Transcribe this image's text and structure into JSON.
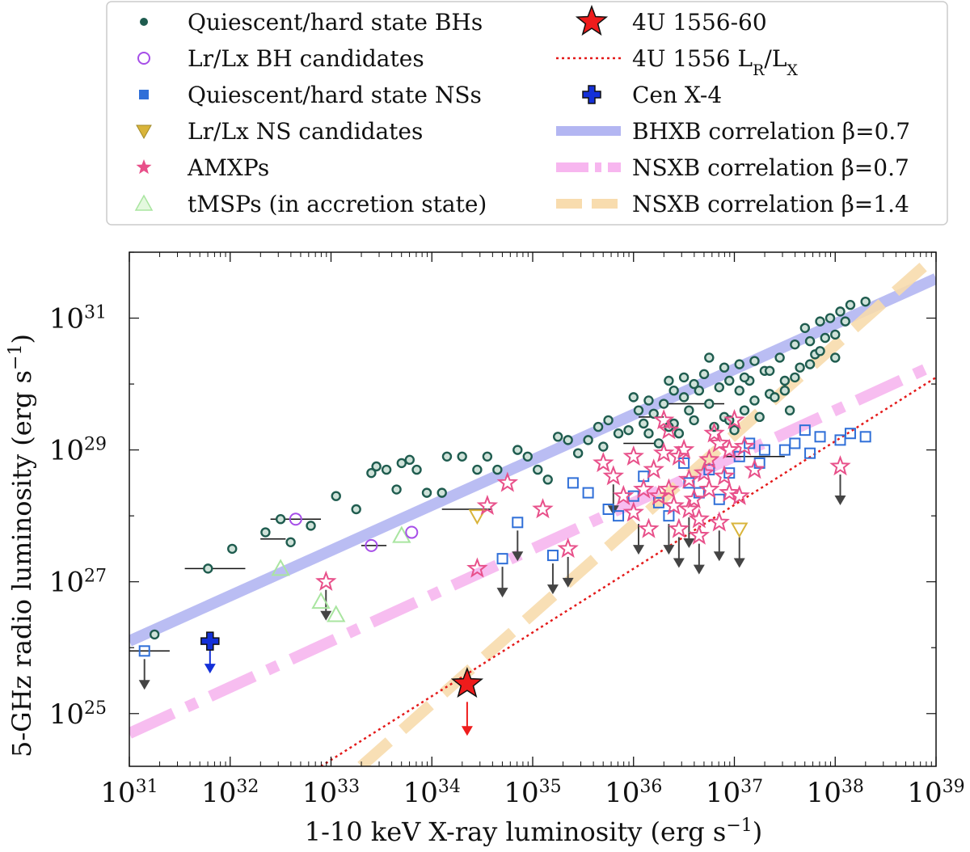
{
  "chart_data": {
    "type": "scatter",
    "xlabel": "1-10 keV X-ray luminosity (erg s",
    "xlabel_sup": "−1",
    "xlabel_end": ")",
    "ylabel": "5-GHz radio luminosity (erg s",
    "ylabel_sup": "−1",
    "ylabel_end": ")",
    "x_scale": "log",
    "y_scale": "log",
    "xlim_log10": [
      31,
      39
    ],
    "ylim_log10": [
      24.2,
      32.0
    ],
    "x_ticks": [
      {
        "exp": 31,
        "base": "10",
        "sup": "31"
      },
      {
        "exp": 32,
        "base": "10",
        "sup": "32"
      },
      {
        "exp": 33,
        "base": "10",
        "sup": "33"
      },
      {
        "exp": 34,
        "base": "10",
        "sup": "34"
      },
      {
        "exp": 35,
        "base": "10",
        "sup": "35"
      },
      {
        "exp": 36,
        "base": "10",
        "sup": "36"
      },
      {
        "exp": 37,
        "base": "10",
        "sup": "37"
      },
      {
        "exp": 38,
        "base": "10",
        "sup": "38"
      },
      {
        "exp": 39,
        "base": "10",
        "sup": "39"
      }
    ],
    "y_ticks": [
      {
        "exp": 25,
        "base": "10",
        "sup": "25"
      },
      {
        "exp": 27,
        "base": "10",
        "sup": "27"
      },
      {
        "exp": 29,
        "base": "10",
        "sup": "29"
      },
      {
        "exp": 31,
        "base": "10",
        "sup": "31"
      }
    ],
    "colors": {
      "bh": "#1f5c4f",
      "bh_cand": "#a64ee8",
      "ns": "#2f6fd8",
      "ns_cand": "#d9b43a",
      "amxp": "#e8508a",
      "tmsp": "#a9e5a0",
      "target": "#ee1c1c",
      "cenx4": "#1430d8",
      "bh_corr": "#b3b6f2",
      "ns_corr07": "#f7b6ef",
      "ns_corr14": "#f8dcae",
      "lrlx": "#e41a1a",
      "arrow": "#444444"
    },
    "legend": {
      "placement": "top",
      "entries": [
        {
          "label": "Quiescent/hard state BHs",
          "marker": "dot"
        },
        {
          "label": "Lr/Lx BH candidates",
          "marker": "circle-purple"
        },
        {
          "label": "Quiescent/hard state NSs",
          "marker": "square-blue"
        },
        {
          "label": "Lr/Lx NS candidates",
          "marker": "triangle-down-yellow"
        },
        {
          "label": "AMXPs",
          "marker": "star-pink"
        },
        {
          "label": "tMSPs (in accretion state)",
          "marker": "triangle-up-green"
        },
        {
          "label": "4U 1556-60",
          "marker": "star-red"
        },
        {
          "label": "4U 1556 L",
          "sub1": "R",
          "mid": "/L",
          "sub2": "X",
          "marker": "dotted-red"
        },
        {
          "label": "Cen X-4",
          "marker": "plus-blue"
        },
        {
          "label": "BHXB correlation β=0.7",
          "marker": "band-blue"
        },
        {
          "label": "NSXB correlation β=0.7",
          "marker": "band-pink"
        },
        {
          "label": "NSXB correlation β=1.4",
          "marker": "band-orange"
        }
      ]
    },
    "lines": [
      {
        "name": "BHXB correlation β=0.7",
        "x": [
          31.0,
          39.0
        ],
        "y": [
          26.1,
          31.6
        ],
        "style": "solid"
      },
      {
        "name": "NSXB correlation β=0.7",
        "x": [
          31.0,
          39.0
        ],
        "y": [
          24.7,
          30.3
        ],
        "style": "dashdot"
      },
      {
        "name": "NSXB correlation β=1.4",
        "x": [
          33.3,
          39.0
        ],
        "y": [
          24.2,
          31.95
        ],
        "style": "dashed"
      },
      {
        "name": "4U 1556 LR/LX",
        "x": [
          32.9,
          39.0
        ],
        "y": [
          24.2,
          30.1
        ],
        "style": "dotted"
      }
    ],
    "series": {
      "bh": [
        [
          31.25,
          26.2
        ],
        [
          31.78,
          27.2
        ],
        [
          32.02,
          27.5
        ],
        [
          32.35,
          27.75
        ],
        [
          32.5,
          27.95
        ],
        [
          32.6,
          27.6
        ],
        [
          32.8,
          27.85
        ],
        [
          33.05,
          28.3
        ],
        [
          33.25,
          28.1
        ],
        [
          33.4,
          28.65
        ],
        [
          33.45,
          28.75
        ],
        [
          33.55,
          28.7
        ],
        [
          33.65,
          28.4
        ],
        [
          33.7,
          28.8
        ],
        [
          33.78,
          28.85
        ],
        [
          33.85,
          28.7
        ],
        [
          33.95,
          28.35
        ],
        [
          34.1,
          28.35
        ],
        [
          34.15,
          28.9
        ],
        [
          34.3,
          28.9
        ],
        [
          34.45,
          28.7
        ],
        [
          34.55,
          28.9
        ],
        [
          34.65,
          28.7
        ],
        [
          34.85,
          29.0
        ],
        [
          34.95,
          28.9
        ],
        [
          35.05,
          28.7
        ],
        [
          35.15,
          28.55
        ],
        [
          35.25,
          29.2
        ],
        [
          35.35,
          29.15
        ],
        [
          35.45,
          28.95
        ],
        [
          35.55,
          29.15
        ],
        [
          35.65,
          29.35
        ],
        [
          35.75,
          29.45
        ],
        [
          35.85,
          29.25
        ],
        [
          35.95,
          29.3
        ],
        [
          35.7,
          29.05
        ],
        [
          36.05,
          29.6
        ],
        [
          36.1,
          29.4
        ],
        [
          36.2,
          29.55
        ],
        [
          36.3,
          29.7
        ],
        [
          36.4,
          29.4
        ],
        [
          36.5,
          29.8
        ],
        [
          36.55,
          29.6
        ],
        [
          36.65,
          29.9
        ],
        [
          36.75,
          29.7
        ],
        [
          36.85,
          29.95
        ],
        [
          36.9,
          29.5
        ],
        [
          37.0,
          29.3
        ],
        [
          37.05,
          29.9
        ],
        [
          37.15,
          30.05
        ],
        [
          37.2,
          29.75
        ],
        [
          37.3,
          30.2
        ],
        [
          37.35,
          29.85
        ],
        [
          37.45,
          30.4
        ],
        [
          37.5,
          30.05
        ],
        [
          37.6,
          30.6
        ],
        [
          37.65,
          30.25
        ],
        [
          37.7,
          30.85
        ],
        [
          37.8,
          30.45
        ],
        [
          37.85,
          30.95
        ],
        [
          37.9,
          30.7
        ],
        [
          37.95,
          31.0
        ],
        [
          37.55,
          29.6
        ],
        [
          37.4,
          29.8
        ],
        [
          37.25,
          29.5
        ],
        [
          37.1,
          29.6
        ],
        [
          36.95,
          29.45
        ],
        [
          36.8,
          29.35
        ],
        [
          36.6,
          29.45
        ],
        [
          36.45,
          29.25
        ],
        [
          36.35,
          29.35
        ],
        [
          36.25,
          29.1
        ],
        [
          36.15,
          29.25
        ],
        [
          36.0,
          29.8
        ],
        [
          36.35,
          30.05
        ],
        [
          36.5,
          30.1
        ],
        [
          36.7,
          30.15
        ],
        [
          36.9,
          30.25
        ],
        [
          37.05,
          30.3
        ],
        [
          37.2,
          30.35
        ],
        [
          37.5,
          29.9
        ],
        [
          37.75,
          30.3
        ],
        [
          38.0,
          30.75
        ],
        [
          38.05,
          31.1
        ],
        [
          38.1,
          30.95
        ],
        [
          38.15,
          31.2
        ],
        [
          38.3,
          31.25
        ],
        [
          36.15,
          29.75
        ],
        [
          36.4,
          29.9
        ],
        [
          36.6,
          30.0
        ],
        [
          36.75,
          30.4
        ],
        [
          36.95,
          30.05
        ],
        [
          37.1,
          30.1
        ],
        [
          37.35,
          30.2
        ],
        [
          37.6,
          30.1
        ],
        [
          37.75,
          30.65
        ],
        [
          37.85,
          30.5
        ],
        [
          38.0,
          30.4
        ]
      ],
      "bh_cand": [
        [
          32.65,
          27.95
        ],
        [
          33.4,
          27.55
        ],
        [
          33.8,
          27.75
        ]
      ],
      "ns": [
        [
          31.15,
          25.95
        ],
        [
          34.85,
          27.9
        ],
        [
          34.7,
          27.35
        ],
        [
          35.2,
          27.4
        ],
        [
          35.4,
          28.5
        ],
        [
          35.55,
          28.35
        ],
        [
          35.75,
          28.1
        ],
        [
          35.85,
          28.0
        ],
        [
          36.0,
          28.3
        ],
        [
          36.1,
          28.6
        ],
        [
          36.25,
          28.2
        ],
        [
          36.35,
          28.0
        ],
        [
          36.5,
          28.8
        ],
        [
          36.55,
          28.5
        ],
        [
          36.65,
          28.35
        ],
        [
          36.75,
          28.7
        ],
        [
          36.85,
          28.25
        ],
        [
          36.95,
          28.65
        ],
        [
          37.05,
          28.9
        ],
        [
          37.15,
          29.1
        ],
        [
          37.25,
          28.8
        ],
        [
          37.5,
          29.0
        ],
        [
          37.6,
          29.1
        ],
        [
          37.75,
          28.95
        ],
        [
          37.85,
          29.2
        ],
        [
          38.05,
          29.15
        ],
        [
          38.15,
          29.25
        ],
        [
          38.3,
          29.2
        ],
        [
          37.7,
          29.3
        ],
        [
          37.3,
          29.0
        ]
      ],
      "ns_cand": [
        [
          34.45,
          28.0
        ],
        [
          37.05,
          27.8
        ]
      ],
      "amxp": [
        [
          32.95,
          27.0
        ],
        [
          34.45,
          27.2
        ],
        [
          34.75,
          28.5
        ],
        [
          34.55,
          28.15
        ],
        [
          35.1,
          28.1
        ],
        [
          35.35,
          27.5
        ],
        [
          35.7,
          28.8
        ],
        [
          35.8,
          28.6
        ],
        [
          35.9,
          28.3
        ],
        [
          36.0,
          28.05
        ],
        [
          36.1,
          28.4
        ],
        [
          36.15,
          27.8
        ],
        [
          36.2,
          28.7
        ],
        [
          36.25,
          28.3
        ],
        [
          36.3,
          28.95
        ],
        [
          36.35,
          28.4
        ],
        [
          36.4,
          28.15
        ],
        [
          36.45,
          27.8
        ],
        [
          36.5,
          29.0
        ],
        [
          36.55,
          28.55
        ],
        [
          36.6,
          28.25
        ],
        [
          36.65,
          27.95
        ],
        [
          36.7,
          28.65
        ],
        [
          36.75,
          28.4
        ],
        [
          36.8,
          29.25
        ],
        [
          36.85,
          29.1
        ],
        [
          36.9,
          28.6
        ],
        [
          36.95,
          28.35
        ],
        [
          37.0,
          29.45
        ],
        [
          37.1,
          29.05
        ],
        [
          37.2,
          28.7
        ],
        [
          36.3,
          29.45
        ],
        [
          36.35,
          29.3
        ],
        [
          36.45,
          28.9
        ],
        [
          36.55,
          28.1
        ],
        [
          36.65,
          27.7
        ],
        [
          36.75,
          28.85
        ],
        [
          36.85,
          27.9
        ],
        [
          36.95,
          29.0
        ],
        [
          37.05,
          28.3
        ],
        [
          38.05,
          28.75
        ],
        [
          36.0,
          28.9
        ]
      ],
      "tmsp": [
        [
          32.5,
          27.2
        ],
        [
          32.9,
          26.7
        ],
        [
          33.05,
          26.5
        ],
        [
          33.7,
          27.7
        ]
      ],
      "target": [
        [
          34.35,
          25.45
        ]
      ],
      "cenx4": [
        [
          31.8,
          26.1
        ]
      ]
    },
    "upper_limits": [
      [
        31.15,
        25.95
      ],
      [
        32.95,
        27.0
      ],
      [
        34.7,
        27.35
      ],
      [
        34.85,
        27.9
      ],
      [
        35.2,
        27.4
      ],
      [
        35.35,
        27.5
      ],
      [
        35.8,
        28.6
      ],
      [
        36.05,
        28.0
      ],
      [
        36.35,
        28.0
      ],
      [
        36.45,
        27.8
      ],
      [
        36.55,
        28.1
      ],
      [
        36.65,
        27.7
      ],
      [
        36.85,
        27.9
      ],
      [
        37.05,
        27.8
      ],
      [
        38.05,
        28.75
      ]
    ],
    "error_bars": [
      [
        [
          31.55,
          32.15
        ],
        27.2
      ],
      [
        [
          32.3,
          32.55
        ],
        27.65
      ],
      [
        [
          32.4,
          32.9
        ],
        27.95
      ],
      [
        [
          33.3,
          33.55
        ],
        27.55
      ],
      [
        [
          34.1,
          34.6
        ],
        28.1
      ],
      [
        [
          36.05,
          36.3
        ],
        29.5
      ],
      [
        [
          36.35,
          36.9
        ],
        29.7
      ],
      [
        [
          35.9,
          36.3
        ],
        29.1
      ],
      [
        [
          36.9,
          37.5
        ],
        28.9
      ],
      [
        [
          31.0,
          31.4
        ],
        25.95
      ]
    ]
  }
}
